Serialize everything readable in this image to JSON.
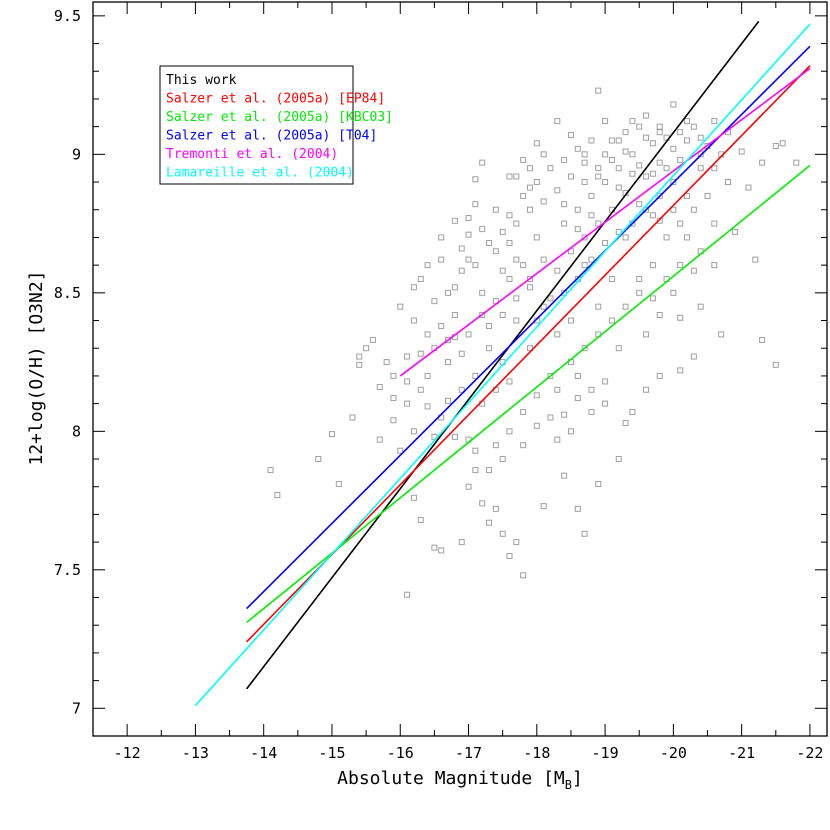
{
  "chart_data": {
    "type": "scatter",
    "title": "",
    "xlabel": "Absolute Magnitude [M",
    "xlabel_subscript": "B",
    "xlabel_close": "]",
    "ylabel": "12+log(O/H) [O3N2]",
    "xlim": [
      -11.5,
      -22.25
    ],
    "ylim": [
      6.9,
      9.55
    ],
    "x_ticks": [
      "-12",
      "-13",
      "-14",
      "-15",
      "-16",
      "-17",
      "-18",
      "-19",
      "-20",
      "-21",
      "-22"
    ],
    "y_ticks": [
      "7",
      "7.5",
      "8",
      "8.5",
      "9",
      "9.5"
    ],
    "points_color": "#a0a0a0",
    "points": [
      [
        -14.1,
        7.86
      ],
      [
        -14.2,
        7.77
      ],
      [
        -14.8,
        7.9
      ],
      [
        -15.0,
        7.99
      ],
      [
        -15.1,
        7.81
      ],
      [
        -15.3,
        8.05
      ],
      [
        -15.4,
        8.24
      ],
      [
        -15.5,
        8.3
      ],
      [
        -15.4,
        8.27
      ],
      [
        -15.6,
        8.33
      ],
      [
        -15.7,
        7.97
      ],
      [
        -15.9,
        8.04
      ],
      [
        -16.0,
        7.93
      ],
      [
        -16.1,
        8.18
      ],
      [
        -16.1,
        7.41
      ],
      [
        -16.2,
        7.76
      ],
      [
        -16.3,
        7.68
      ],
      [
        -16.4,
        8.09
      ],
      [
        -16.5,
        7.98
      ],
      [
        -16.6,
        7.57
      ],
      [
        -16.5,
        7.58
      ],
      [
        -16.7,
        8.11
      ],
      [
        -16.8,
        8.34
      ],
      [
        -16.9,
        7.6
      ],
      [
        -17.0,
        7.8
      ],
      [
        -17.1,
        7.86
      ],
      [
        -17.2,
        7.74
      ],
      [
        -17.3,
        7.67
      ],
      [
        -17.4,
        7.72
      ],
      [
        -17.5,
        7.63
      ],
      [
        -17.6,
        7.55
      ],
      [
        -17.7,
        7.6
      ],
      [
        -17.8,
        7.48
      ],
      [
        -18.1,
        7.73
      ],
      [
        -18.4,
        7.84
      ],
      [
        -18.6,
        7.72
      ],
      [
        -18.7,
        7.63
      ],
      [
        -18.9,
        7.81
      ],
      [
        -19.2,
        7.9
      ],
      [
        -16.0,
        8.45
      ],
      [
        -16.2,
        8.4
      ],
      [
        -16.3,
        8.55
      ],
      [
        -16.5,
        8.47
      ],
      [
        -16.6,
        8.62
      ],
      [
        -16.8,
        8.52
      ],
      [
        -16.9,
        8.66
      ],
      [
        -17.0,
        8.71
      ],
      [
        -17.1,
        8.82
      ],
      [
        -17.1,
        8.91
      ],
      [
        -17.2,
        8.97
      ],
      [
        -17.0,
        8.77
      ],
      [
        -16.9,
        8.58
      ],
      [
        -16.7,
        8.5
      ],
      [
        -16.4,
        8.35
      ],
      [
        -16.3,
        8.28
      ],
      [
        -16.1,
        8.27
      ],
      [
        -15.9,
        8.2
      ],
      [
        -15.7,
        8.16
      ],
      [
        -17.6,
        8.92
      ],
      [
        -17.8,
        8.98
      ],
      [
        -17.9,
        8.88
      ],
      [
        -18.0,
        9.04
      ],
      [
        -18.3,
        9.12
      ],
      [
        -18.5,
        9.07
      ],
      [
        -18.7,
        9.0
      ],
      [
        -18.9,
        9.23
      ],
      [
        -19.0,
        9.12
      ],
      [
        -19.2,
        9.05
      ],
      [
        -19.4,
        9.12
      ],
      [
        -19.6,
        9.14
      ],
      [
        -19.8,
        9.08
      ],
      [
        -20.0,
        9.18
      ],
      [
        -20.2,
        9.12
      ],
      [
        -20.4,
        9.06
      ],
      [
        -20.6,
        9.12
      ],
      [
        -20.8,
        9.08
      ],
      [
        -21.0,
        9.01
      ],
      [
        -21.3,
        8.97
      ],
      [
        -21.5,
        9.03
      ],
      [
        -21.8,
        8.97
      ],
      [
        -21.6,
        9.04
      ],
      [
        -21.1,
        8.88
      ],
      [
        -20.9,
        8.72
      ],
      [
        -21.2,
        8.62
      ],
      [
        -20.6,
        8.6
      ],
      [
        -20.4,
        8.45
      ],
      [
        -20.1,
        8.41
      ],
      [
        -21.3,
        8.33
      ],
      [
        -21.5,
        8.24
      ],
      [
        -20.7,
        8.35
      ],
      [
        -20.3,
        8.27
      ],
      [
        -20.1,
        8.22
      ],
      [
        -19.8,
        8.2
      ],
      [
        -19.6,
        8.15
      ],
      [
        -19.4,
        8.07
      ],
      [
        -19.3,
        8.03
      ],
      [
        -19.0,
        8.18
      ],
      [
        -18.8,
        8.15
      ],
      [
        -18.6,
        8.12
      ],
      [
        -18.4,
        8.06
      ],
      [
        -18.2,
        8.05
      ],
      [
        -18.0,
        8.13
      ],
      [
        -17.8,
        8.07
      ],
      [
        -17.6,
        8.0
      ],
      [
        -17.4,
        7.95
      ],
      [
        -17.3,
        7.86
      ],
      [
        -17.0,
        7.97
      ],
      [
        -16.8,
        7.98
      ],
      [
        -19.7,
        8.6
      ],
      [
        -19.5,
        8.5
      ],
      [
        -19.3,
        8.7
      ],
      [
        -19.1,
        8.55
      ],
      [
        -18.9,
        8.45
      ],
      [
        -18.7,
        8.6
      ],
      [
        -18.5,
        8.4
      ],
      [
        -18.3,
        8.35
      ],
      [
        -18.1,
        8.45
      ],
      [
        -17.9,
        8.3
      ],
      [
        -17.7,
        8.4
      ],
      [
        -17.5,
        8.25
      ],
      [
        -17.3,
        8.3
      ],
      [
        -17.1,
        8.2
      ],
      [
        -16.9,
        8.15
      ],
      [
        -16.7,
        8.25
      ],
      [
        -16.6,
        8.05
      ],
      [
        -16.4,
        8.2
      ],
      [
        -16.2,
        8.0
      ],
      [
        -18.2,
        8.2
      ],
      [
        -17.6,
        8.55
      ],
      [
        -17.4,
        8.65
      ],
      [
        -17.2,
        8.5
      ],
      [
        -17.8,
        8.6
      ],
      [
        -18.0,
        8.7
      ],
      [
        -18.4,
        8.75
      ],
      [
        -18.6,
        8.8
      ],
      [
        -18.8,
        8.85
      ],
      [
        -19.0,
        8.9
      ],
      [
        -19.2,
        8.95
      ],
      [
        -19.4,
        9.0
      ],
      [
        -19.6,
        8.92
      ],
      [
        -19.8,
        8.97
      ],
      [
        -20.0,
        9.02
      ],
      [
        -20.2,
        9.05
      ],
      [
        -20.4,
        9.0
      ],
      [
        -20.6,
        8.95
      ],
      [
        -20.8,
        8.9
      ],
      [
        -20.5,
        8.85
      ],
      [
        -20.3,
        8.8
      ],
      [
        -20.1,
        8.75
      ],
      [
        -19.9,
        8.7
      ],
      [
        -19.7,
        8.78
      ],
      [
        -19.5,
        8.82
      ],
      [
        -19.3,
        8.86
      ],
      [
        -19.1,
        8.8
      ],
      [
        -18.9,
        8.75
      ],
      [
        -18.7,
        8.7
      ],
      [
        -18.5,
        8.65
      ],
      [
        -18.3,
        8.58
      ],
      [
        -18.1,
        8.62
      ],
      [
        -17.9,
        8.52
      ],
      [
        -17.7,
        8.48
      ],
      [
        -17.5,
        8.42
      ],
      [
        -17.3,
        8.38
      ],
      [
        -19.0,
        9.0
      ],
      [
        -19.2,
        8.88
      ],
      [
        -19.4,
        8.93
      ],
      [
        -19.6,
        9.06
      ],
      [
        -19.8,
        9.1
      ],
      [
        -20.0,
        8.9
      ],
      [
        -20.2,
        8.85
      ],
      [
        -20.4,
        8.95
      ],
      [
        -19.8,
        8.85
      ],
      [
        -19.6,
        8.8
      ],
      [
        -19.4,
        8.75
      ],
      [
        -19.2,
        8.72
      ],
      [
        -19.0,
        8.68
      ],
      [
        -18.8,
        8.62
      ],
      [
        -18.6,
        8.55
      ],
      [
        -18.4,
        8.5
      ],
      [
        -18.2,
        8.48
      ],
      [
        -18.0,
        8.4
      ],
      [
        -18.9,
        8.95
      ],
      [
        -18.7,
        8.9
      ],
      [
        -18.5,
        8.92
      ],
      [
        -18.3,
        8.87
      ],
      [
        -18.1,
        8.83
      ],
      [
        -17.9,
        8.8
      ],
      [
        -17.7,
        8.75
      ],
      [
        -17.5,
        8.72
      ],
      [
        -17.3,
        8.68
      ],
      [
        -17.1,
        8.6
      ],
      [
        -19.1,
        9.05
      ],
      [
        -19.3,
        9.08
      ],
      [
        -19.5,
        9.1
      ],
      [
        -19.7,
        9.04
      ],
      [
        -19.9,
        9.06
      ],
      [
        -20.1,
        9.08
      ],
      [
        -20.3,
        9.1
      ],
      [
        -20.5,
        9.03
      ],
      [
        -20.7,
        9.0
      ],
      [
        -18.8,
        9.05
      ],
      [
        -18.6,
        9.02
      ],
      [
        -18.4,
        8.98
      ],
      [
        -18.2,
        8.95
      ],
      [
        -18.0,
        8.9
      ],
      [
        -17.8,
        8.85
      ],
      [
        -17.6,
        8.78
      ],
      [
        -19.9,
        8.95
      ],
      [
        -20.1,
        8.98
      ],
      [
        -19.7,
        8.93
      ],
      [
        -19.5,
        8.96
      ],
      [
        -19.3,
        9.01
      ],
      [
        -19.1,
        8.98
      ],
      [
        -18.9,
        8.92
      ],
      [
        -18.7,
        8.97
      ],
      [
        -20.0,
        8.8
      ],
      [
        -19.8,
        8.76
      ],
      [
        -20.2,
        8.7
      ],
      [
        -20.4,
        8.65
      ],
      [
        -20.6,
        8.75
      ],
      [
        -17.9,
        8.55
      ],
      [
        -17.7,
        8.62
      ],
      [
        -17.5,
        8.58
      ],
      [
        -16.8,
        8.42
      ],
      [
        -16.6,
        8.38
      ],
      [
        -16.5,
        8.3
      ],
      [
        -16.3,
        8.15
      ],
      [
        -16.1,
        8.1
      ],
      [
        -15.9,
        8.12
      ],
      [
        -15.8,
        8.25
      ],
      [
        -17.2,
        8.1
      ],
      [
        -17.4,
        8.15
      ],
      [
        -17.6,
        8.18
      ],
      [
        -18.5,
        8.25
      ],
      [
        -18.7,
        8.3
      ],
      [
        -18.9,
        8.35
      ],
      [
        -19.1,
        8.4
      ],
      [
        -19.3,
        8.45
      ],
      [
        -19.5,
        8.55
      ],
      [
        -19.7,
        8.48
      ],
      [
        -19.9,
        8.55
      ],
      [
        -20.1,
        8.6
      ],
      [
        -20.3,
        8.58
      ],
      [
        -18.3,
        8.15
      ],
      [
        -18.6,
        8.2
      ],
      [
        -19.2,
        8.3
      ],
      [
        -19.6,
        8.35
      ],
      [
        -19.8,
        8.42
      ],
      [
        -20.0,
        8.5
      ],
      [
        -17.0,
        8.35
      ],
      [
        -17.2,
        8.42
      ],
      [
        -17.4,
        8.47
      ],
      [
        -16.9,
        8.28
      ],
      [
        -16.7,
        8.33
      ],
      [
        -18.0,
        8.02
      ],
      [
        -17.8,
        7.95
      ],
      [
        -17.5,
        7.9
      ],
      [
        -17.1,
        7.93
      ],
      [
        -18.3,
        7.97
      ],
      [
        -18.5,
        8.0
      ],
      [
        -18.8,
        8.07
      ],
      [
        -19.0,
        8.1
      ],
      [
        -16.6,
        8.7
      ],
      [
        -16.8,
        8.76
      ],
      [
        -17.0,
        8.62
      ],
      [
        -17.2,
        8.73
      ],
      [
        -17.4,
        8.8
      ],
      [
        -17.6,
        8.68
      ],
      [
        -16.4,
        8.6
      ],
      [
        -16.2,
        8.52
      ],
      [
        -18.1,
        9.0
      ],
      [
        -17.9,
        8.95
      ],
      [
        -17.7,
        8.92
      ],
      [
        -18.4,
        8.82
      ],
      [
        -18.6,
        8.73
      ],
      [
        -18.8,
        8.78
      ]
    ],
    "series": [
      {
        "name": "This work",
        "color": "#000000",
        "x": [
          -13.75,
          -21.25
        ],
        "y": [
          7.07,
          9.48
        ]
      },
      {
        "name": "Salzer et al. (2005a) [EP84]",
        "color": "#ff0000",
        "x": [
          -13.75,
          -22.0
        ],
        "y": [
          7.24,
          9.32
        ]
      },
      {
        "name": "Salzer et al. (2005a) [KBC03]",
        "color": "#00ee00",
        "x": [
          -13.75,
          -22.0
        ],
        "y": [
          7.31,
          8.96
        ]
      },
      {
        "name": "Salzer et al. (2005a) [T04]",
        "color": "#0000ff",
        "x": [
          -13.75,
          -22.0
        ],
        "y": [
          7.36,
          9.39
        ]
      },
      {
        "name": "Tremonti et al. (2004)",
        "color": "#ff00ff",
        "x": [
          -16.0,
          -22.0
        ],
        "y": [
          8.2,
          9.31
        ]
      },
      {
        "name": "Lamareille et al. (2004)",
        "color": "#00ffff",
        "x": [
          -13.0,
          -22.0
        ],
        "y": [
          7.01,
          9.47
        ]
      }
    ],
    "legend_placement": "top-left"
  }
}
